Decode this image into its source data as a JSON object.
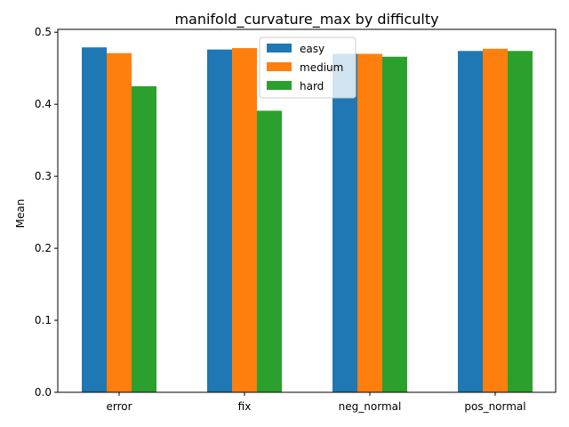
{
  "chart_data": {
    "type": "bar",
    "title": "manifold_curvature_max by difficulty",
    "xlabel": "",
    "ylabel": "Mean",
    "categories": [
      "error",
      "fix",
      "neg_normal",
      "pos_normal"
    ],
    "series": [
      {
        "name": "easy",
        "color": "#1f77b4",
        "values": [
          0.479,
          0.476,
          0.47,
          0.474
        ]
      },
      {
        "name": "medium",
        "color": "#ff7f0e",
        "values": [
          0.471,
          0.478,
          0.47,
          0.477
        ]
      },
      {
        "name": "hard",
        "color": "#2ca02c",
        "values": [
          0.425,
          0.391,
          0.466,
          0.474
        ]
      }
    ],
    "ylim": [
      0,
      0.504
    ],
    "yticks": [
      "0.0",
      "0.1",
      "0.2",
      "0.3",
      "0.4",
      "0.5"
    ],
    "legend": "upper-center",
    "grid": false
  }
}
